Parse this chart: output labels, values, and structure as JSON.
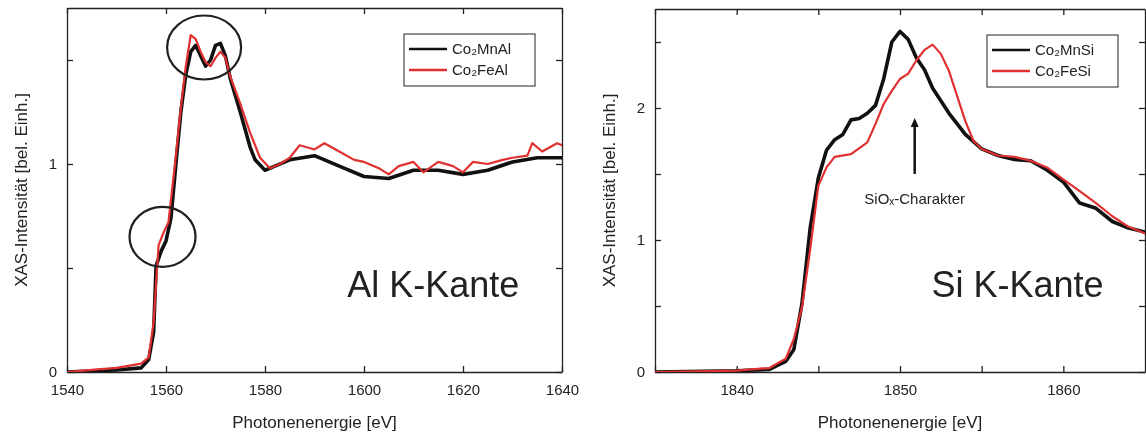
{
  "chart_data": [
    {
      "type": "line",
      "xlabel": "Photonenenergie [eV]",
      "ylabel": "XAS-Intensität [bel. Einh.]",
      "xlim": [
        1540,
        1640
      ],
      "xticks": [
        1540,
        1560,
        1580,
        1600,
        1620,
        1640
      ],
      "ylim": [
        0,
        1.75
      ],
      "yticks": [
        0,
        {
          "value": 0.5,
          "label": null
        },
        1,
        {
          "value": 1.5,
          "label": null
        }
      ],
      "legend": "top right",
      "grid": false,
      "line_style": "solid",
      "marker": "none",
      "annotations": [
        "Al K-Kante"
      ],
      "series": [
        {
          "name": "Co₂MnAl",
          "color": "#111111",
          "x": [
            1540,
            1550,
            1555,
            1556.5,
            1557.5,
            1558,
            1559,
            1560,
            1561,
            1562,
            1563,
            1564,
            1565,
            1566,
            1567,
            1568,
            1569,
            1570,
            1571,
            1572,
            1573,
            1575,
            1577,
            1578,
            1580,
            1582,
            1585,
            1590,
            1595,
            1600,
            1605,
            1610,
            1615,
            1620,
            1625,
            1630,
            1635,
            1640
          ],
          "values": [
            0,
            0.01,
            0.02,
            0.06,
            0.19,
            0.51,
            0.58,
            0.63,
            0.74,
            1.0,
            1.25,
            1.43,
            1.54,
            1.57,
            1.52,
            1.47,
            1.5,
            1.57,
            1.58,
            1.52,
            1.41,
            1.25,
            1.08,
            1.02,
            0.97,
            0.99,
            1.02,
            1.04,
            0.99,
            0.94,
            0.93,
            0.97,
            0.97,
            0.95,
            0.97,
            1.01,
            1.03,
            1.03
          ]
        },
        {
          "name": "Co₂FeAl",
          "color": "#e03030",
          "x": [
            1540,
            1545,
            1550,
            1555,
            1556.5,
            1557.5,
            1558.5,
            1559.5,
            1560.5,
            1562,
            1563,
            1564,
            1565,
            1566,
            1567,
            1568,
            1569,
            1570,
            1571,
            1572,
            1573,
            1575,
            1577,
            1579,
            1581,
            1583,
            1585,
            1587,
            1590,
            1592,
            1595,
            1598,
            1600,
            1603,
            1605,
            1607,
            1610,
            1612,
            1615,
            1618,
            1620,
            1622,
            1625,
            1628,
            1630,
            1633,
            1634,
            1636,
            1639,
            1640
          ],
          "values": [
            0,
            0.01,
            0.02,
            0.04,
            0.07,
            0.24,
            0.61,
            0.67,
            0.72,
            1.04,
            1.27,
            1.47,
            1.62,
            1.6,
            1.54,
            1.49,
            1.47,
            1.51,
            1.54,
            1.51,
            1.42,
            1.29,
            1.15,
            1.03,
            0.98,
            1.0,
            1.03,
            1.09,
            1.07,
            1.1,
            1.06,
            1.02,
            1.01,
            0.98,
            0.95,
            0.99,
            1.01,
            0.96,
            1.01,
            0.99,
            0.96,
            1.01,
            1.0,
            1.02,
            1.03,
            1.04,
            1.1,
            1.06,
            1.1,
            1.09
          ]
        }
      ]
    },
    {
      "type": "line",
      "xlabel": "Photonenenergie [eV]",
      "ylabel": "XAS-Intensität [bel. Einh.]",
      "xlim": [
        1835,
        1865
      ],
      "xticks": [
        {
          "value": 1835,
          "label": null
        },
        1840,
        {
          "value": 1845,
          "label": null
        },
        1850,
        {
          "value": 1855,
          "label": null
        },
        1860
      ],
      "ylim": [
        0,
        2.75
      ],
      "yticks": [
        0,
        {
          "value": 0.5,
          "label": null
        },
        1,
        {
          "value": 1.5,
          "label": null
        },
        2,
        {
          "value": 2.5,
          "label": null
        }
      ],
      "legend": "top right",
      "grid": false,
      "line_style": "solid",
      "marker": "none",
      "annotations": [
        "SiOₓ-Charakter",
        "Si K-Kante"
      ],
      "series": [
        {
          "name": "Co₂MnSi",
          "color": "#111111",
          "x": [
            1835,
            1840,
            1842,
            1843,
            1843.5,
            1844,
            1844.5,
            1845,
            1845.5,
            1846,
            1846.5,
            1847,
            1847.5,
            1848,
            1848.5,
            1849,
            1849.5,
            1850,
            1850.5,
            1851,
            1851.5,
            1852,
            1853,
            1854,
            1855,
            1856,
            1857,
            1858,
            1859,
            1860,
            1861,
            1862,
            1863,
            1864,
            1865
          ],
          "values": [
            0,
            0.01,
            0.02,
            0.08,
            0.17,
            0.52,
            1.09,
            1.47,
            1.68,
            1.76,
            1.8,
            1.91,
            1.92,
            1.96,
            2.02,
            2.22,
            2.5,
            2.58,
            2.52,
            2.38,
            2.29,
            2.15,
            1.96,
            1.8,
            1.69,
            1.64,
            1.61,
            1.6,
            1.53,
            1.44,
            1.28,
            1.24,
            1.14,
            1.09,
            1.06
          ]
        },
        {
          "name": "Co₂FeSi",
          "color": "#e03030",
          "x": [
            1835,
            1840,
            1842,
            1843,
            1843.5,
            1844,
            1844.5,
            1845,
            1845.5,
            1846,
            1847,
            1848,
            1848.5,
            1849,
            1849.5,
            1850,
            1850.5,
            1851,
            1851.5,
            1852,
            1852.5,
            1853,
            1853.5,
            1854,
            1854.5,
            1855,
            1856,
            1857,
            1858,
            1859,
            1860,
            1861,
            1862,
            1863,
            1864,
            1865
          ],
          "values": [
            0,
            0.01,
            0.03,
            0.1,
            0.25,
            0.49,
            0.93,
            1.41,
            1.55,
            1.63,
            1.65,
            1.74,
            1.88,
            2.03,
            2.13,
            2.22,
            2.26,
            2.36,
            2.44,
            2.48,
            2.41,
            2.28,
            2.09,
            1.9,
            1.75,
            1.69,
            1.64,
            1.63,
            1.6,
            1.55,
            1.46,
            1.37,
            1.28,
            1.18,
            1.1,
            1.05
          ]
        }
      ]
    }
  ]
}
